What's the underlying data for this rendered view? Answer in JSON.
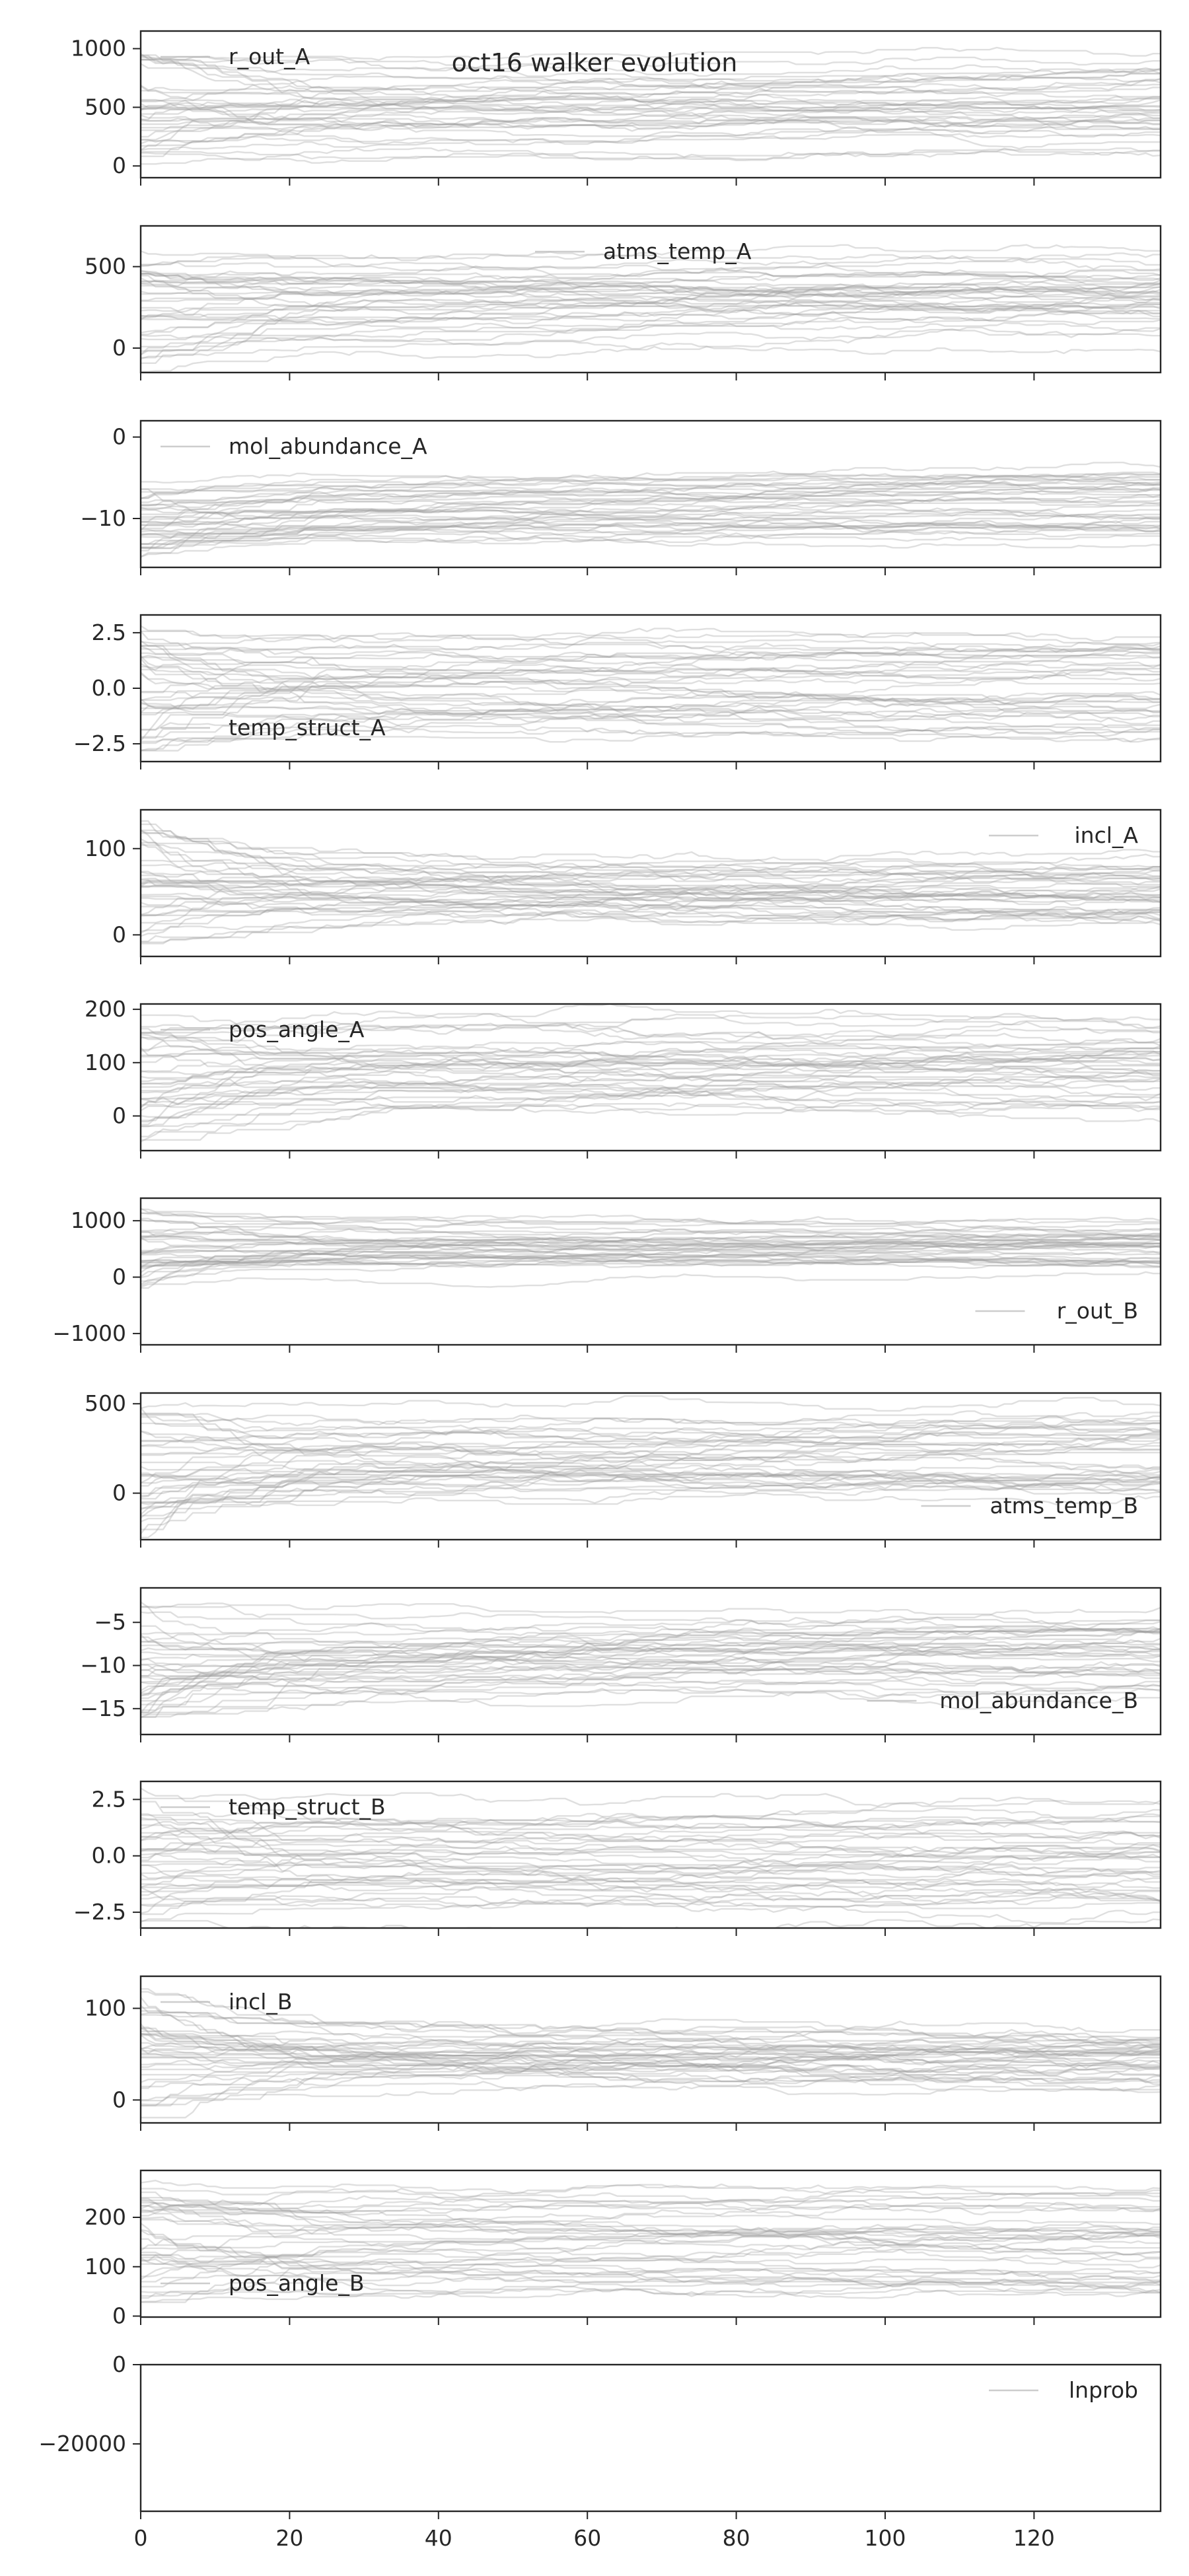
{
  "chart_data": {
    "type": "line",
    "title": "oct16 walker evolution",
    "x_range": [
      0,
      137
    ],
    "x_ticks": [
      "0",
      "20",
      "40",
      "60",
      "80",
      "100",
      "120"
    ],
    "n_walkers": 40,
    "line_color": "#9a9a9a",
    "panels": [
      {
        "label": "r_out_A",
        "ylim": [
          -100,
          1150
        ],
        "yticks": [
          0,
          500,
          1000
        ],
        "ytick_labels": [
          "0",
          "500",
          "1000"
        ],
        "legend": "upper-left",
        "walker_range": [
          0,
          1000
        ],
        "converged_range": [
          100,
          950
        ]
      },
      {
        "label": "atms_temp_A",
        "ylim": [
          -150,
          750
        ],
        "yticks": [
          0,
          500
        ],
        "ytick_labels": [
          "0",
          "500"
        ],
        "legend": "upper-center",
        "walker_range": [
          -150,
          600
        ],
        "converged_range": [
          30,
          600
        ]
      },
      {
        "label": "mol_abundance_A",
        "ylim": [
          -16,
          2
        ],
        "yticks": [
          0,
          -10
        ],
        "ytick_labels": [
          "0",
          "−10"
        ],
        "legend": "upper-left",
        "walker_range": [
          -15,
          -3
        ],
        "converged_range": [
          -13,
          -3
        ]
      },
      {
        "label": "temp_struct_A",
        "ylim": [
          -3.3,
          3.3
        ],
        "yticks": [
          2.5,
          0.0,
          -2.5
        ],
        "ytick_labels": [
          "2.5",
          "0.0",
          "−2.5"
        ],
        "legend": "lower-left",
        "walker_range": [
          -3,
          3
        ],
        "converged_range": [
          -2.8,
          2.8
        ]
      },
      {
        "label": "incl_A",
        "ylim": [
          -25,
          145
        ],
        "yticks": [
          100,
          0
        ],
        "ytick_labels": [
          "100",
          "0"
        ],
        "legend": "upper-right",
        "walker_range": [
          -20,
          135
        ],
        "converged_range": [
          5,
          85
        ]
      },
      {
        "label": "pos_angle_A",
        "ylim": [
          -65,
          210
        ],
        "yticks": [
          200,
          100,
          0
        ],
        "ytick_labels": [
          "200",
          "100",
          "0"
        ],
        "legend": "upper-left",
        "walker_range": [
          -60,
          200
        ],
        "converged_range": [
          10,
          195
        ]
      },
      {
        "label": "r_out_B",
        "ylim": [
          -1200,
          1400
        ],
        "yticks": [
          1000,
          0,
          -1000
        ],
        "ytick_labels": [
          "1000",
          "0",
          "−1000"
        ],
        "legend": "lower-right",
        "walker_range": [
          -300,
          1250
        ],
        "converged_range": [
          100,
          1000
        ]
      },
      {
        "label": "atms_temp_B",
        "ylim": [
          -260,
          560
        ],
        "yticks": [
          500,
          0
        ],
        "ytick_labels": [
          "500",
          "0"
        ],
        "legend": "lower-right",
        "walker_range": [
          -250,
          500
        ],
        "converged_range": [
          -20,
          500
        ]
      },
      {
        "label": "mol_abundance_B",
        "ylim": [
          -18,
          -1
        ],
        "yticks": [
          -5,
          -10,
          -15
        ],
        "ytick_labels": [
          "−5",
          "−10",
          "−15"
        ],
        "legend": "lower-right",
        "walker_range": [
          -17,
          -2
        ],
        "converged_range": [
          -13,
          -3
        ]
      },
      {
        "label": "temp_struct_B",
        "ylim": [
          -3.2,
          3.3
        ],
        "yticks": [
          2.5,
          0.0,
          -2.5
        ],
        "ytick_labels": [
          "2.5",
          "0.0",
          "−2.5"
        ],
        "legend": "upper-left",
        "walker_range": [
          -3,
          3
        ],
        "converged_range": [
          -2.8,
          2.8
        ]
      },
      {
        "label": "incl_B",
        "ylim": [
          -25,
          135
        ],
        "yticks": [
          100,
          0
        ],
        "ytick_labels": [
          "100",
          "0"
        ],
        "legend": "upper-left",
        "walker_range": [
          -20,
          125
        ],
        "converged_range": [
          5,
          85
        ]
      },
      {
        "label": "pos_angle_B",
        "ylim": [
          -2,
          295
        ],
        "yticks": [
          200,
          100,
          0
        ],
        "ytick_labels": [
          "200",
          "100",
          "0"
        ],
        "legend": "lower-left",
        "walker_range": [
          20,
          270
        ],
        "converged_range": [
          40,
          260
        ]
      },
      {
        "label": "lnprob",
        "ylim": [
          -37000,
          0
        ],
        "yticks": [
          0,
          -20000
        ],
        "ytick_labels": [
          "0",
          "−20000"
        ],
        "legend": "upper-right",
        "walker_range": null,
        "converged_range": null
      }
    ]
  }
}
